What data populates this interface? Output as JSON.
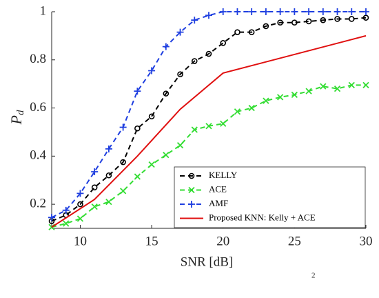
{
  "chart_data": {
    "type": "line",
    "xlabel": "SNR [dB]",
    "ylabel": "P",
    "ylabel_subscript": "d",
    "xlim": [
      8,
      30
    ],
    "ylim": [
      0.1,
      1
    ],
    "xticks": [
      10,
      15,
      20,
      25,
      30
    ],
    "yticks": [
      0.2,
      0.4,
      0.6,
      0.8,
      1
    ],
    "legend_position": "lower right",
    "annotations": [
      "2"
    ],
    "series": [
      {
        "name": "KELLY",
        "color": "#000000",
        "line": "dashed",
        "marker": "circle",
        "x": [
          8,
          9,
          10,
          11,
          12,
          13,
          14,
          15,
          16,
          17,
          18,
          19,
          20,
          21,
          22,
          23,
          24,
          25,
          26,
          27,
          28,
          29,
          30
        ],
        "values": [
          0.13,
          0.155,
          0.2,
          0.27,
          0.32,
          0.375,
          0.515,
          0.565,
          0.66,
          0.74,
          0.795,
          0.825,
          0.87,
          0.915,
          0.915,
          0.94,
          0.955,
          0.955,
          0.96,
          0.965,
          0.97,
          0.97,
          0.975
        ]
      },
      {
        "name": "ACE",
        "color": "#33dd33",
        "line": "dashed",
        "marker": "x",
        "x": [
          8,
          9,
          10,
          11,
          12,
          13,
          14,
          15,
          16,
          17,
          18,
          19,
          20,
          21,
          22,
          23,
          24,
          25,
          26,
          27,
          28,
          29,
          30
        ],
        "values": [
          0.105,
          0.12,
          0.14,
          0.19,
          0.21,
          0.255,
          0.315,
          0.365,
          0.405,
          0.445,
          0.51,
          0.525,
          0.535,
          0.585,
          0.6,
          0.63,
          0.645,
          0.655,
          0.67,
          0.69,
          0.68,
          0.695,
          0.695
        ]
      },
      {
        "name": "AMF",
        "color": "#1f3fe0",
        "line": "dashed",
        "marker": "plus",
        "x": [
          8,
          9,
          10,
          11,
          12,
          13,
          14,
          15,
          16,
          17,
          18,
          19,
          20,
          21,
          22,
          23,
          24,
          25,
          26,
          27,
          28,
          29,
          30
        ],
        "values": [
          0.145,
          0.175,
          0.245,
          0.335,
          0.43,
          0.52,
          0.67,
          0.755,
          0.855,
          0.915,
          0.965,
          0.985,
          1,
          1,
          1,
          1,
          1,
          1,
          1,
          1,
          1,
          1,
          1
        ]
      },
      {
        "name": "Proposed KNN: Kelly + ACE",
        "color": "#e01010",
        "line": "solid",
        "marker": "none",
        "x": [
          8,
          11,
          14,
          17,
          20,
          30
        ],
        "values": [
          0.105,
          0.22,
          0.4,
          0.595,
          0.745,
          0.9
        ]
      }
    ]
  }
}
